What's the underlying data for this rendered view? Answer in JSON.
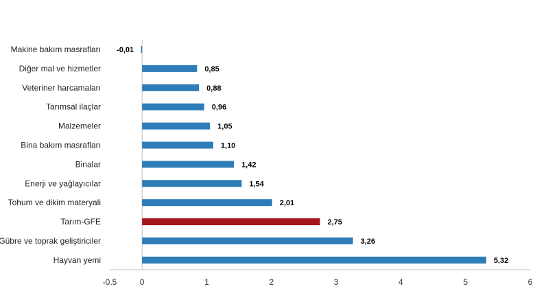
{
  "chart_data": {
    "type": "bar",
    "orientation": "horizontal",
    "title": "",
    "xlabel": "",
    "ylabel": "",
    "categories": [
      "Makine bakım masrafları",
      "Diğer mal ve hizmetler",
      "Veteriner harcamaları",
      "Tarımsal ilaçlar",
      "Malzemeler",
      "Bina bakım masrafları",
      "Binalar",
      "Enerji  ve yağlayıcılar",
      "Tohum ve dikim materyali",
      "Tarım-GFE",
      "Gübre ve toprak geliştiriciler",
      "Hayvan yemi"
    ],
    "values": [
      -0.01,
      0.85,
      0.88,
      0.96,
      1.05,
      1.1,
      1.42,
      1.54,
      2.01,
      2.75,
      3.26,
      5.32
    ],
    "value_labels": [
      "-0,01",
      "0,85",
      "0,88",
      "0,96",
      "1,05",
      "1,10",
      "1,42",
      "1,54",
      "2,01",
      "2,75",
      "3,26",
      "5,32"
    ],
    "xlim": [
      -0.5,
      6
    ],
    "x_ticks": [
      -0.5,
      0,
      1,
      2,
      3,
      4,
      5,
      6
    ],
    "x_tick_labels": [
      "-0.5",
      "0",
      "1",
      "2",
      "3",
      "4",
      "5",
      "6"
    ],
    "highlight_category": "Tarım-GFE",
    "colors": {
      "bar": "#2e7db8",
      "highlight": "#a5161a",
      "axis": "#bfbfbf"
    },
    "grid": false,
    "legend": "none"
  }
}
